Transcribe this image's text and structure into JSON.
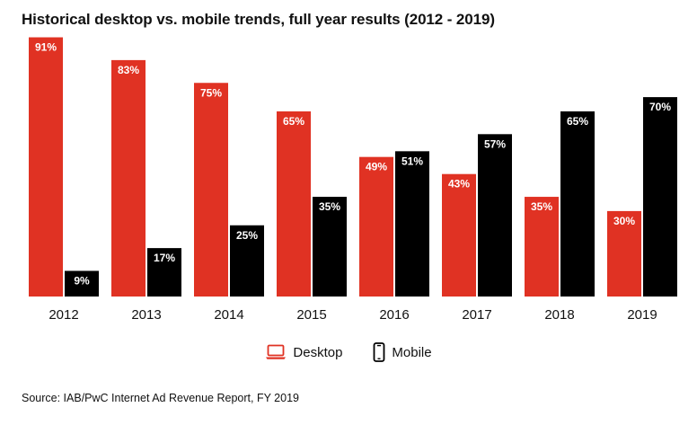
{
  "chart_data": {
    "type": "bar",
    "title": "Historical desktop vs. mobile trends, full year results (2012 - 2019)",
    "categories": [
      "2012",
      "2013",
      "2014",
      "2015",
      "2016",
      "2017",
      "2018",
      "2019"
    ],
    "series": [
      {
        "name": "Desktop",
        "color": "#e03223",
        "values": [
          91,
          83,
          75,
          65,
          49,
          43,
          35,
          30
        ],
        "labels": [
          "91%",
          "83%",
          "75%",
          "65%",
          "49%",
          "43%",
          "35%",
          "30%"
        ]
      },
      {
        "name": "Mobile",
        "color": "#000000",
        "values": [
          9,
          17,
          25,
          35,
          51,
          57,
          65,
          70
        ],
        "labels": [
          "9%",
          "17%",
          "25%",
          "35%",
          "51%",
          "57%",
          "65%",
          "70%"
        ]
      }
    ],
    "xlabel": "",
    "ylabel": "",
    "ylim": [
      0,
      100
    ],
    "grid": false,
    "legend_position": "bottom-center",
    "value_unit": "%"
  },
  "legend": {
    "desktop_label": "Desktop",
    "mobile_label": "Mobile",
    "desktop_icon": "laptop-icon",
    "mobile_icon": "smartphone-icon"
  },
  "source": "Source: IAB/PwC Internet Ad Revenue Report, FY 2019"
}
